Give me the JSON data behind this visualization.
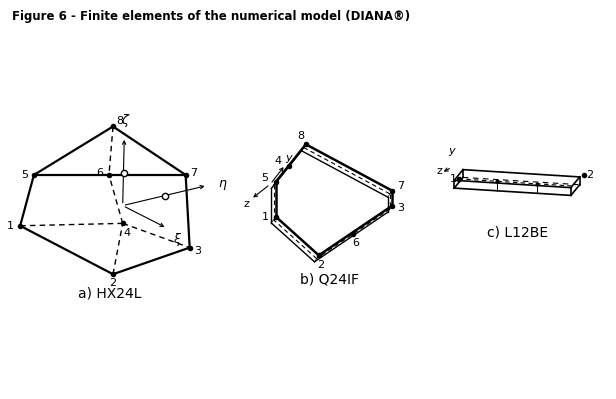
{
  "title": "Figure 6 - Finite elements of the numerical model (DIANA®)",
  "bg_color": "#ffffff",
  "label_a": "a) HX24L",
  "label_b": "b) Q24IF",
  "label_c": "c) L12BE"
}
